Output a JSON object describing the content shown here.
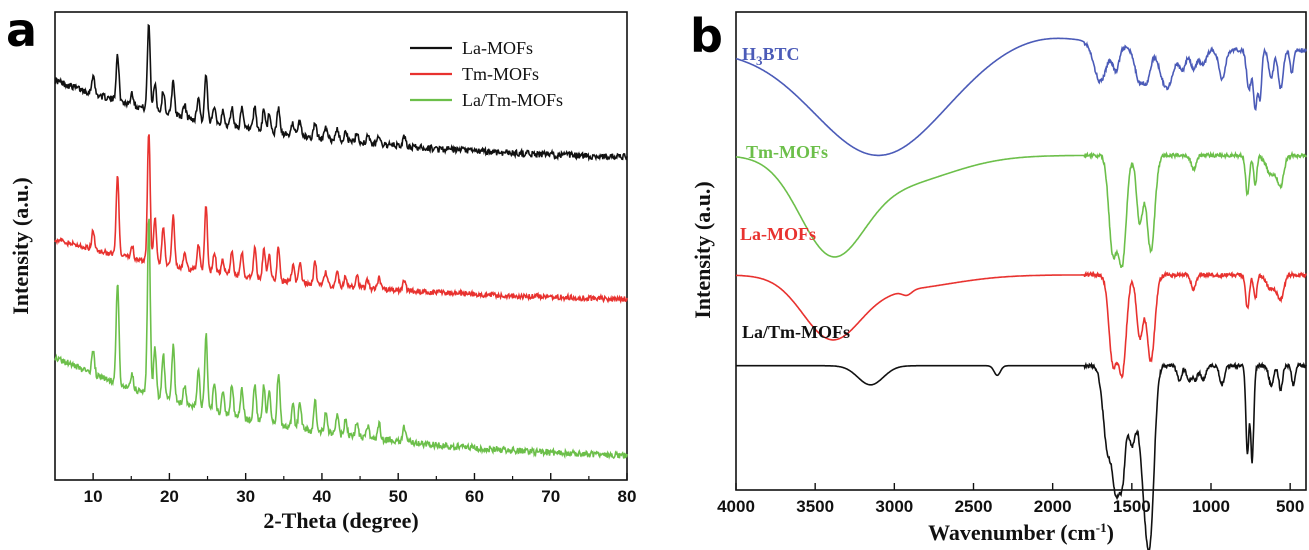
{
  "chart_data": [
    {
      "panel": "a",
      "type": "line",
      "xlabel": "2-Theta (degree)",
      "ylabel": "Intensity (a.u.)",
      "xlim": [
        5,
        80
      ],
      "xticks": [
        "10",
        "20",
        "30",
        "40",
        "50",
        "60",
        "70",
        "80"
      ],
      "legend": "top-right",
      "series": [
        {
          "name": "La-MOFs",
          "color": "#111111",
          "baseline_start": 0.6,
          "baseline_end": 0.07,
          "offset": 0.66,
          "scale": 0.35,
          "peaks": [
            [
              10.0,
              0.12
            ],
            [
              13.2,
              0.3
            ],
            [
              15.1,
              0.08
            ],
            [
              17.3,
              0.55
            ],
            [
              18.1,
              0.18
            ],
            [
              19.2,
              0.14
            ],
            [
              20.5,
              0.22
            ],
            [
              22.0,
              0.08
            ],
            [
              23.8,
              0.15
            ],
            [
              24.8,
              0.3
            ],
            [
              25.9,
              0.12
            ],
            [
              27.0,
              0.08
            ],
            [
              28.2,
              0.12
            ],
            [
              29.5,
              0.12
            ],
            [
              31.2,
              0.14
            ],
            [
              32.4,
              0.14
            ],
            [
              33.1,
              0.12
            ],
            [
              34.3,
              0.16
            ],
            [
              36.2,
              0.08
            ],
            [
              37.1,
              0.1
            ],
            [
              39.1,
              0.1
            ],
            [
              40.5,
              0.07
            ],
            [
              42.0,
              0.08
            ],
            [
              43.1,
              0.07
            ],
            [
              44.6,
              0.06
            ],
            [
              46.0,
              0.05
            ],
            [
              47.5,
              0.06
            ],
            [
              50.8,
              0.06
            ]
          ]
        },
        {
          "name": "Tm-MOFs",
          "color": "#e8322f",
          "baseline_start": 0.55,
          "baseline_end": 0.07,
          "offset": 0.35,
          "scale": 0.3,
          "peaks": [
            [
              10.0,
              0.14
            ],
            [
              13.2,
              0.58
            ],
            [
              15.1,
              0.1
            ],
            [
              17.3,
              0.98
            ],
            [
              18.1,
              0.34
            ],
            [
              19.2,
              0.28
            ],
            [
              20.5,
              0.38
            ],
            [
              22.0,
              0.1
            ],
            [
              23.8,
              0.2
            ],
            [
              24.8,
              0.5
            ],
            [
              25.9,
              0.16
            ],
            [
              27.0,
              0.1
            ],
            [
              28.2,
              0.18
            ],
            [
              29.5,
              0.18
            ],
            [
              31.2,
              0.22
            ],
            [
              32.4,
              0.22
            ],
            [
              33.1,
              0.18
            ],
            [
              34.3,
              0.25
            ],
            [
              36.2,
              0.12
            ],
            [
              37.1,
              0.15
            ],
            [
              39.1,
              0.16
            ],
            [
              40.5,
              0.1
            ],
            [
              42.0,
              0.1
            ],
            [
              43.1,
              0.08
            ],
            [
              44.6,
              0.08
            ],
            [
              46.0,
              0.06
            ],
            [
              47.5,
              0.08
            ],
            [
              50.8,
              0.08
            ]
          ]
        },
        {
          "name": "La/Tm-MOFs",
          "color": "#6cbf4a",
          "baseline_start": 0.9,
          "baseline_end": 0.05,
          "offset": 0.0,
          "scale": 0.28,
          "peaks": [
            [
              10.0,
              0.18
            ],
            [
              13.2,
              0.8
            ],
            [
              15.1,
              0.12
            ],
            [
              17.3,
              1.4
            ],
            [
              18.1,
              0.4
            ],
            [
              19.2,
              0.35
            ],
            [
              20.5,
              0.45
            ],
            [
              22.0,
              0.15
            ],
            [
              23.8,
              0.3
            ],
            [
              24.8,
              0.6
            ],
            [
              25.9,
              0.25
            ],
            [
              27.0,
              0.18
            ],
            [
              28.2,
              0.25
            ],
            [
              29.5,
              0.25
            ],
            [
              31.2,
              0.3
            ],
            [
              32.4,
              0.3
            ],
            [
              33.1,
              0.28
            ],
            [
              34.3,
              0.4
            ],
            [
              36.2,
              0.18
            ],
            [
              37.1,
              0.22
            ],
            [
              39.1,
              0.25
            ],
            [
              40.5,
              0.15
            ],
            [
              42.0,
              0.15
            ],
            [
              43.1,
              0.12
            ],
            [
              44.6,
              0.12
            ],
            [
              46.0,
              0.1
            ],
            [
              47.5,
              0.12
            ],
            [
              50.8,
              0.12
            ]
          ]
        }
      ]
    },
    {
      "panel": "b",
      "type": "line",
      "xlabel": "Wavenumber (cm",
      "xlabel_sup": "-1",
      "xlabel_end": ")",
      "ylabel": "Intensity (a.u.)",
      "xlim": [
        4000,
        400
      ],
      "xticks": [
        "4000",
        "3500",
        "3000",
        "2500",
        "2000",
        "1500",
        "1000",
        "500"
      ],
      "series": [
        {
          "name": "H3BTC",
          "label_main": "H",
          "label_sub": "3",
          "label_rest": "BTC",
          "color": "#4b5bb8",
          "baseline": 0.92,
          "bands": [
            [
              3100,
              400,
              -0.22
            ],
            [
              2050,
              300,
              0.03
            ],
            [
              1700,
              40,
              -0.08
            ],
            [
              1600,
              20,
              -0.05
            ],
            [
              1450,
              30,
              -0.07
            ],
            [
              1400,
              20,
              -0.05
            ],
            [
              1280,
              40,
              -0.08
            ],
            [
              1180,
              20,
              -0.04
            ],
            [
              1110,
              20,
              -0.04
            ],
            [
              1050,
              20,
              -0.03
            ],
            [
              930,
              20,
              -0.06
            ],
            [
              760,
              15,
              -0.08
            ],
            [
              720,
              12,
              -0.12
            ],
            [
              690,
              10,
              -0.1
            ],
            [
              620,
              15,
              -0.06
            ],
            [
              560,
              15,
              -0.08
            ],
            [
              490,
              10,
              -0.05
            ]
          ]
        },
        {
          "name": "Tm-MOFs",
          "color": "#6cbf4a",
          "baseline": 0.7,
          "bands": [
            [
              3400,
              200,
              -0.18
            ],
            [
              3000,
              350,
              -0.06
            ],
            [
              1620,
              25,
              -0.2
            ],
            [
              1560,
              25,
              -0.22
            ],
            [
              1450,
              20,
              -0.14
            ],
            [
              1380,
              25,
              -0.2
            ],
            [
              1110,
              15,
              -0.03
            ],
            [
              770,
              12,
              -0.08
            ],
            [
              720,
              10,
              -0.06
            ],
            [
              620,
              30,
              -0.04
            ],
            [
              560,
              20,
              -0.06
            ]
          ]
        },
        {
          "name": "La-MOFs",
          "color": "#e8322f",
          "baseline": 0.45,
          "bands": [
            [
              3400,
              180,
              -0.12
            ],
            [
              3000,
              350,
              -0.03
            ],
            [
              2920,
              30,
              -0.01
            ],
            [
              1620,
              25,
              -0.18
            ],
            [
              1560,
              25,
              -0.2
            ],
            [
              1450,
              20,
              -0.13
            ],
            [
              1380,
              25,
              -0.18
            ],
            [
              1110,
              15,
              -0.03
            ],
            [
              770,
              12,
              -0.07
            ],
            [
              720,
              10,
              -0.05
            ],
            [
              620,
              30,
              -0.03
            ],
            [
              560,
              20,
              -0.05
            ]
          ]
        },
        {
          "name": "La/Tm-MOFs",
          "color": "#111111",
          "baseline": 0.26,
          "bands": [
            [
              3150,
              80,
              -0.04
            ],
            [
              2350,
              20,
              -0.02
            ],
            [
              1650,
              30,
              -0.18
            ],
            [
              1600,
              20,
              -0.2
            ],
            [
              1560,
              20,
              -0.22
            ],
            [
              1500,
              25,
              -0.16
            ],
            [
              1420,
              30,
              -0.24
            ],
            [
              1380,
              25,
              -0.26
            ],
            [
              1200,
              15,
              -0.03
            ],
            [
              1140,
              15,
              -0.03
            ],
            [
              1100,
              15,
              -0.03
            ],
            [
              1050,
              15,
              -0.03
            ],
            [
              930,
              15,
              -0.04
            ],
            [
              770,
              10,
              -0.18
            ],
            [
              740,
              10,
              -0.2
            ],
            [
              620,
              15,
              -0.04
            ],
            [
              560,
              12,
              -0.05
            ],
            [
              480,
              10,
              -0.04
            ]
          ]
        }
      ]
    }
  ],
  "panels": {
    "a": {
      "letter": "a"
    },
    "b": {
      "letter": "b"
    }
  }
}
